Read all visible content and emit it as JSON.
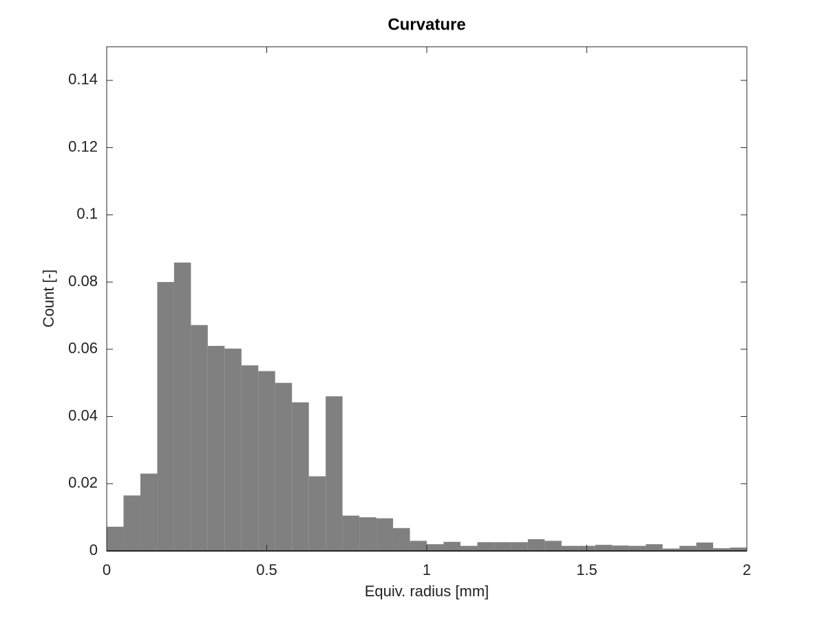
{
  "chart_data": {
    "type": "histogram",
    "title": "Curvature",
    "xlabel": "Equiv. radius [mm]",
    "ylabel": "Count [-]",
    "bins": [
      0,
      0.0526,
      0.1053,
      0.1579,
      0.2105,
      0.2632,
      0.3158,
      0.3684,
      0.4211,
      0.4737,
      0.5263,
      0.5789,
      0.6316,
      0.6842,
      0.7368,
      0.7895,
      0.8421,
      0.8947,
      0.9474,
      1,
      1.0526,
      1.1053,
      1.1579,
      1.2105,
      1.2632,
      1.3158,
      1.3684,
      1.4211,
      1.4737,
      1.5263,
      1.5789,
      1.6316,
      1.6842,
      1.7368,
      1.7895,
      1.8421,
      1.8947,
      1.9474,
      2
    ],
    "values": [
      0.0072,
      0.0165,
      0.023,
      0.08,
      0.0858,
      0.0672,
      0.061,
      0.0602,
      0.0552,
      0.0535,
      0.05,
      0.0442,
      0.0222,
      0.046,
      0.0105,
      0.01,
      0.0097,
      0.0068,
      0.003,
      0.002,
      0.0027,
      0.0015,
      0.0026,
      0.0026,
      0.0026,
      0.0035,
      0.003,
      0.0015,
      0.0015,
      0.0018,
      0.0016,
      0.0015,
      0.002,
      0.0007,
      0.0015,
      0.0025,
      0.0008,
      0.001
    ],
    "color": "#808080",
    "xlim": [
      0,
      2
    ],
    "ylim": [
      0,
      0.15
    ],
    "xticks": [
      0,
      0.5,
      1,
      1.5,
      2
    ],
    "yticks": [
      0,
      0.02,
      0.04,
      0.06,
      0.08,
      0.1,
      0.12,
      0.14
    ]
  }
}
